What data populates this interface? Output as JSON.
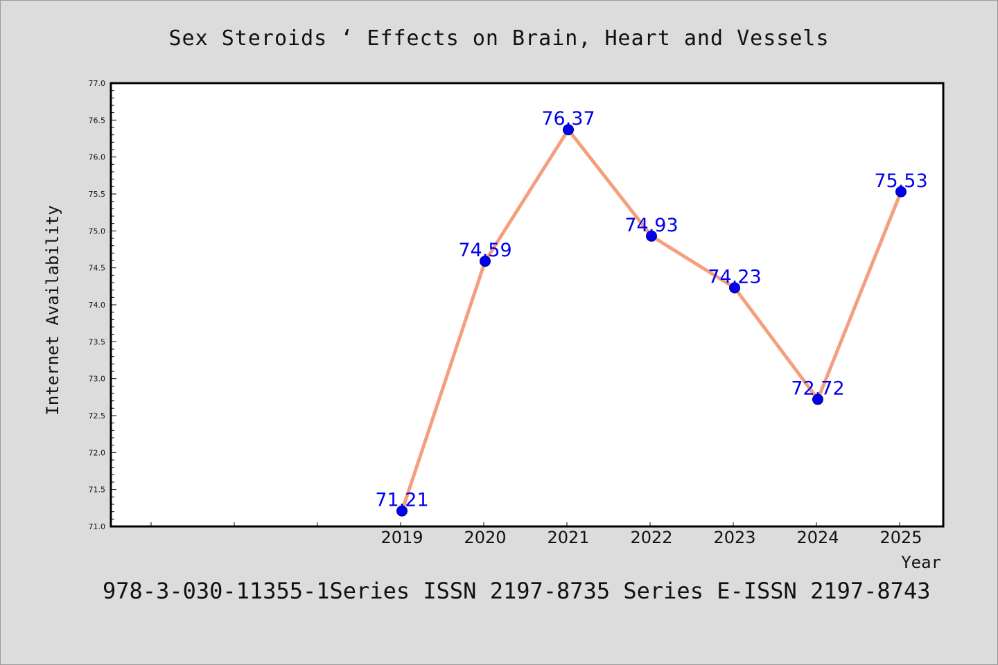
{
  "page": {
    "title": "Sex Steroids ‘ Effects on Brain, Heart and Vessels",
    "footer": "978-3-030-11355-1Series ISSN 2197-8735 Series E-ISSN 2197-8743"
  },
  "chart_data": {
    "type": "line",
    "title": "Sex Steroids ‘ Effects on Brain, Heart and Vessels",
    "xlabel": "Year",
    "ylabel": "Internet Availability",
    "x": [
      "2019",
      "2020",
      "2021",
      "2022",
      "2023",
      "2024",
      "2025"
    ],
    "series": [
      {
        "values": [
          71.21,
          74.59,
          76.37,
          74.93,
          74.23,
          72.72,
          75.53
        ],
        "data_labels": [
          "71.21",
          "74.59",
          "76.37",
          "74.93",
          "74.23",
          "72.72",
          "75.53"
        ]
      }
    ],
    "ylim": [
      71.0,
      77.0
    ],
    "yticks": [
      "71.0",
      "71.5",
      "72.0",
      "72.5",
      "73.0",
      "73.5",
      "74.0",
      "74.5",
      "75.0",
      "75.5",
      "76.0",
      "76.5",
      "77.0"
    ],
    "grid": false,
    "legend": "none",
    "colors": {
      "line": "#f4a07e",
      "marker": "#0000ee",
      "label": "#0000ee",
      "background": "#dcdcdc",
      "plot_background": "#ffffff"
    }
  }
}
